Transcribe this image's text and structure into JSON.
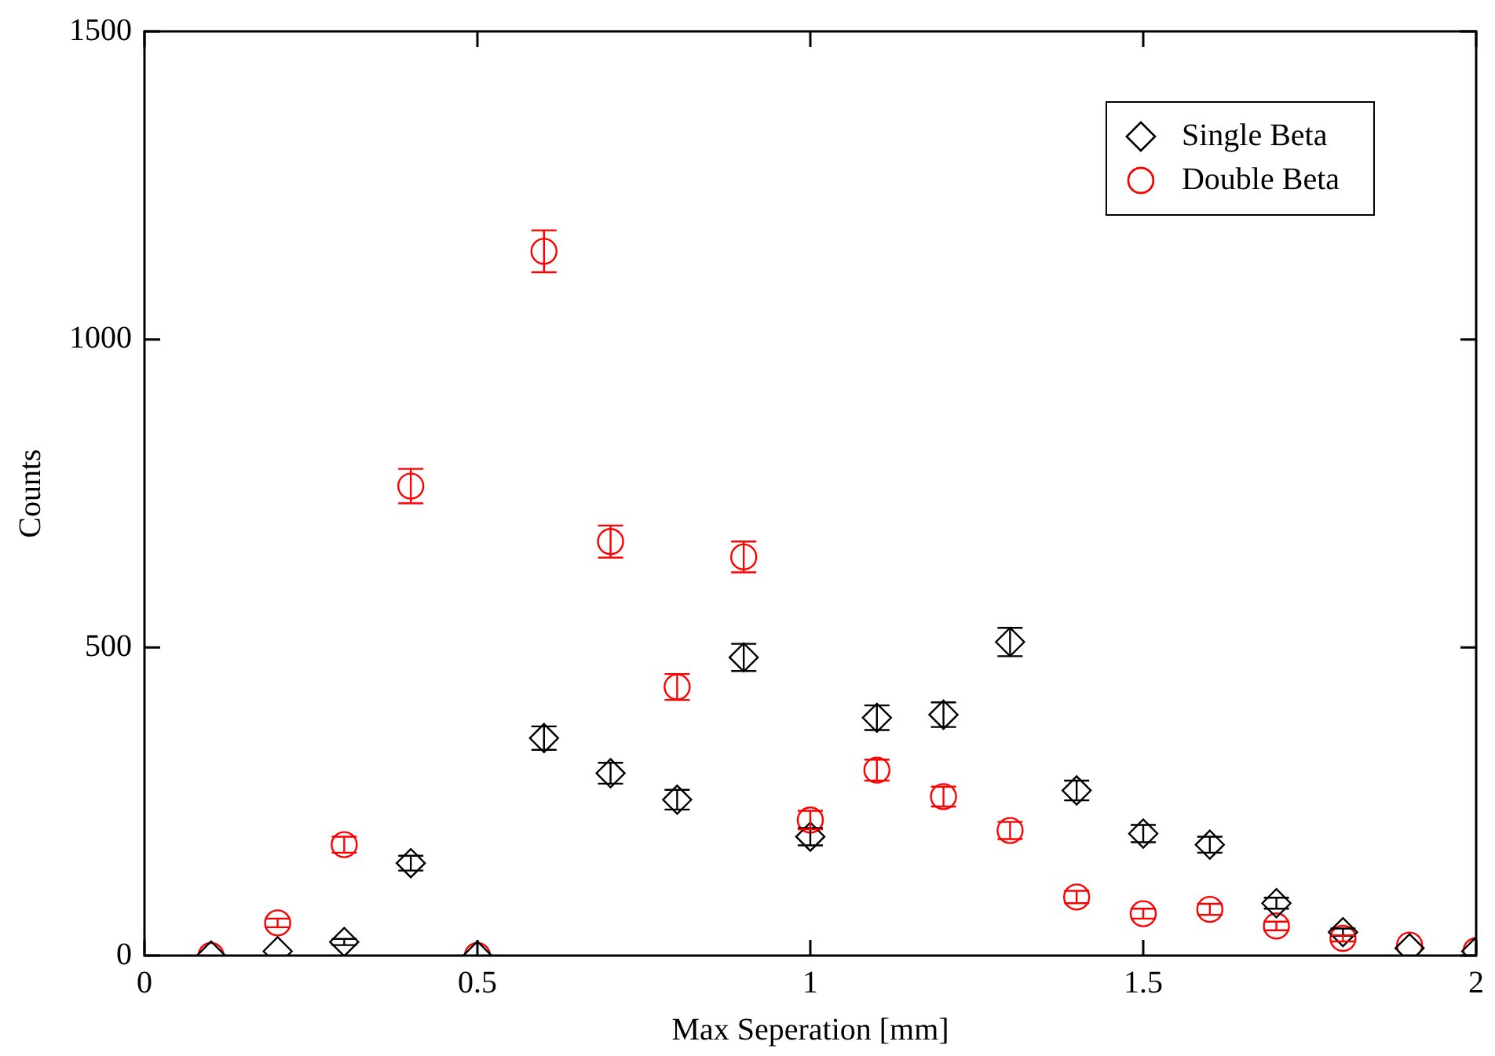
{
  "chart_data": {
    "type": "scatter",
    "xlabel": "Max Seperation [mm]",
    "ylabel": "Counts",
    "xlim": [
      0,
      2
    ],
    "xticks": [
      0,
      0.5,
      1,
      1.5,
      2
    ],
    "ylim": [
      0,
      1500
    ],
    "yticks": [
      0,
      500,
      1000,
      1500
    ],
    "grid": false,
    "legend": "top right",
    "series": [
      {
        "name": "Single Beta",
        "color": "#000000",
        "marker": "diamond",
        "x": [
          0.1,
          0.2,
          0.3,
          0.4,
          0.5,
          0.6,
          0.7,
          0.8,
          0.9,
          1.0,
          1.1,
          1.2,
          1.3,
          1.4,
          1.5,
          1.6,
          1.7,
          1.8,
          1.9,
          2.0
        ],
        "values": [
          0,
          7,
          22,
          150,
          0,
          353,
          296,
          253,
          484,
          193,
          386,
          391,
          509,
          268,
          198,
          180,
          85,
          38,
          12,
          7
        ],
        "errors": [
          null,
          null,
          5,
          12,
          null,
          19,
          17,
          16,
          22,
          14,
          20,
          20,
          23,
          16,
          14,
          13,
          9,
          6,
          null,
          null
        ]
      },
      {
        "name": "Double Beta",
        "color": "#ff0000",
        "marker": "circle",
        "x": [
          0.1,
          0.2,
          0.3,
          0.4,
          0.5,
          0.6,
          0.7,
          0.8,
          0.9,
          1.0,
          1.1,
          1.2,
          1.3,
          1.4,
          1.5,
          1.6,
          1.7,
          1.8,
          1.9,
          2.0
        ],
        "values": [
          0,
          53,
          180,
          762,
          0,
          1143,
          672,
          436,
          647,
          220,
          301,
          258,
          203,
          95,
          68,
          75,
          48,
          28,
          17,
          8
        ],
        "errors": [
          null,
          7,
          13,
          28,
          null,
          34,
          26,
          21,
          25,
          15,
          17,
          16,
          14,
          10,
          8,
          9,
          7,
          5,
          null,
          null
        ]
      }
    ]
  }
}
